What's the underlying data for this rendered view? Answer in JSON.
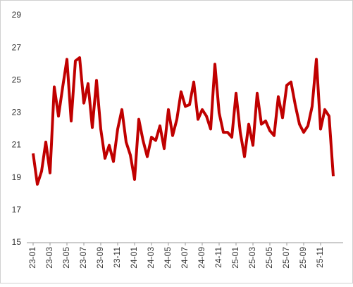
{
  "chart_data": {
    "type": "line",
    "categories": [
      "23-01",
      null,
      null,
      null,
      "23-03",
      null,
      null,
      null,
      "23-05",
      null,
      null,
      null,
      "23-07",
      null,
      null,
      null,
      "23-09",
      null,
      null,
      null,
      "23-11",
      null,
      null,
      null,
      "24-01",
      null,
      null,
      null,
      "24-03",
      null,
      null,
      null,
      "24-05",
      null,
      null,
      null,
      "24-07",
      null,
      null,
      null,
      "24-09",
      null,
      null,
      null,
      "24-11",
      null,
      null,
      null,
      "25-01",
      null,
      null,
      null,
      "25-03",
      null,
      null,
      null,
      "25-05",
      null,
      null,
      null,
      "25-07",
      null,
      null,
      null,
      "25-09",
      null,
      null,
      null,
      "25-11",
      null,
      null,
      null
    ],
    "series": [
      {
        "color": "#c00000",
        "values": [
          20.5,
          18.6,
          19.4,
          21.2,
          19.3,
          24.6,
          22.8,
          24.6,
          26.3,
          22.5,
          26.2,
          26.4,
          23.6,
          24.8,
          22.1,
          25.0,
          22.0,
          20.2,
          21.0,
          20.0,
          22.0,
          23.2,
          21.2,
          20.4,
          18.9,
          22.6,
          21.3,
          20.3,
          21.5,
          21.3,
          22.2,
          20.8,
          23.2,
          21.6,
          22.6,
          24.3,
          23.4,
          23.5,
          24.9,
          22.6,
          23.2,
          22.8,
          22.0,
          26.0,
          23.0,
          21.8,
          21.8,
          21.5,
          24.2,
          21.8,
          20.3,
          22.3,
          21.0,
          24.2,
          22.3,
          22.5,
          21.9,
          21.6,
          24.0,
          22.7,
          24.7,
          24.9,
          23.5,
          22.3,
          21.8,
          22.2,
          23.4,
          26.3,
          22.0,
          23.2,
          22.8,
          19.1
        ]
      }
    ],
    "ylim": [
      15,
      29
    ],
    "yticks": [
      15,
      17,
      19,
      21,
      23,
      25,
      27,
      29
    ],
    "grid": false
  }
}
